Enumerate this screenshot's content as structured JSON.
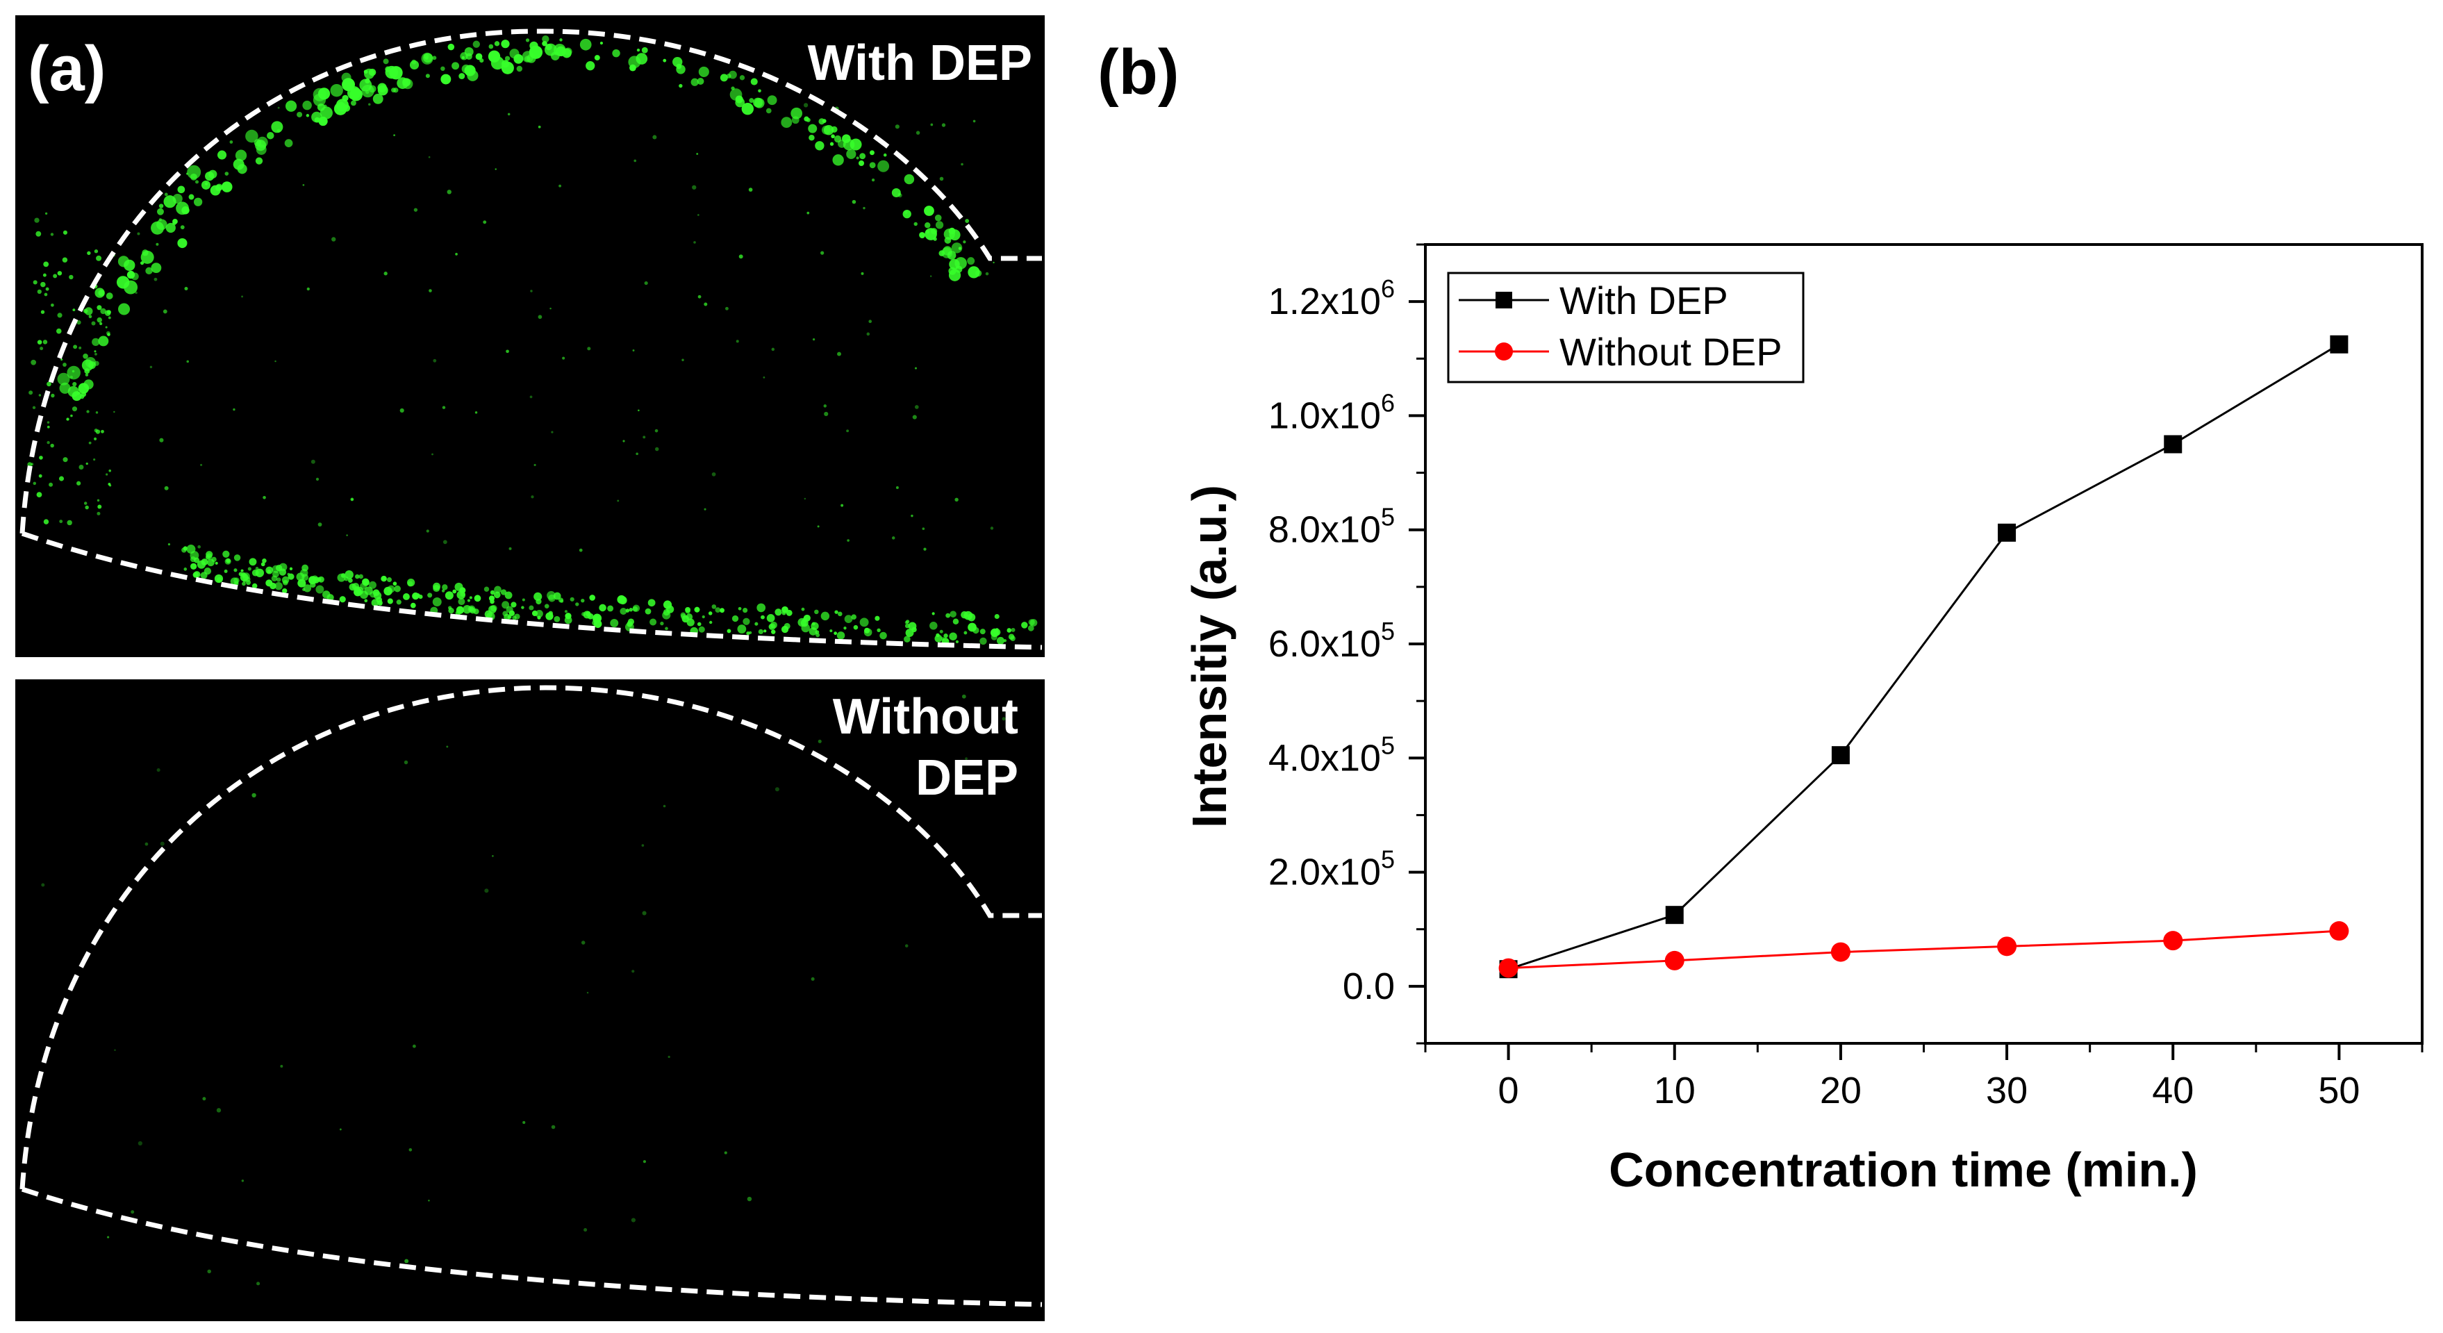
{
  "panel_a": {
    "label": "(a)",
    "top_image": {
      "label": "With DEP"
    },
    "bottom_image": {
      "label_line1": "Without",
      "label_line2": "DEP"
    },
    "fluorescence_color": "#37ff2a",
    "outline_color": "#ffffff",
    "background_color": "#000000"
  },
  "panel_b": {
    "label": "(b)"
  },
  "chart_data": {
    "type": "line",
    "xlabel": "Concentration time (min.)",
    "ylabel": "Intensitiy (a.u.)",
    "x": [
      0,
      10,
      20,
      30,
      40,
      50
    ],
    "xlim": [
      -5,
      55
    ],
    "ylim": [
      -100000,
      1300000
    ],
    "x_ticks": [
      0,
      10,
      20,
      30,
      40,
      50
    ],
    "y_ticks": [
      0,
      200000,
      400000,
      600000,
      800000,
      1000000,
      1200000
    ],
    "y_tick_labels": [
      {
        "mantissa": "0.0",
        "exp": ""
      },
      {
        "mantissa": "2.0x10",
        "exp": "5"
      },
      {
        "mantissa": "4.0x10",
        "exp": "5"
      },
      {
        "mantissa": "6.0x10",
        "exp": "5"
      },
      {
        "mantissa": "8.0x10",
        "exp": "5"
      },
      {
        "mantissa": "1.0x10",
        "exp": "6"
      },
      {
        "mantissa": "1.2x10",
        "exp": "6"
      }
    ],
    "grid": false,
    "legend_position": "top-left",
    "series": [
      {
        "name": "With DEP",
        "marker": "square",
        "color": "#000000",
        "values": [
          30000,
          125000,
          405000,
          795000,
          950000,
          1125000
        ]
      },
      {
        "name": "Without DEP",
        "marker": "circle",
        "color": "#ff0000",
        "values": [
          32000,
          45000,
          60000,
          70000,
          80000,
          97000
        ]
      }
    ]
  }
}
